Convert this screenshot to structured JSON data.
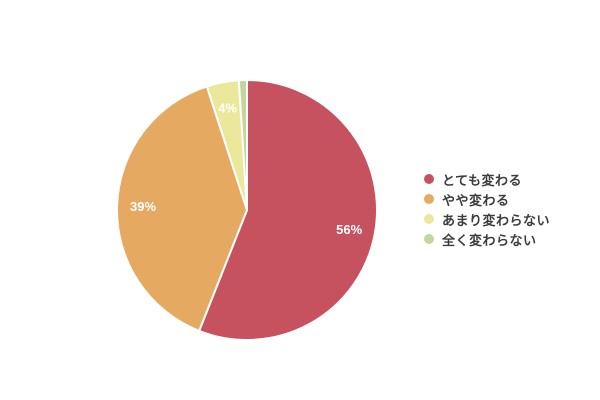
{
  "background_color": "#ffffff",
  "chart_data": {
    "type": "pie",
    "title": "",
    "categories": [
      "とても変わる",
      "やや変わる",
      "あまり変わらない",
      "全く変わらない"
    ],
    "values": [
      56,
      39,
      4,
      1
    ],
    "unit": "%",
    "slice_labels": [
      "56%",
      "39%",
      "4%",
      ""
    ],
    "colors": [
      "#c6525f",
      "#e5a961",
      "#ebe79b",
      "#c3d69b"
    ],
    "slice_border_color": "#ffffff",
    "slice_label_color": "#ffffff",
    "start_angle_deg": 0,
    "direction": "clockwise",
    "legend_position": "right",
    "grid": false
  },
  "legend": {
    "items": [
      {
        "label": "とても変わる",
        "color": "#c6525f"
      },
      {
        "label": "やや変わる",
        "color": "#e5a961"
      },
      {
        "label": "あまり変わらない",
        "color": "#ebe79b"
      },
      {
        "label": "全く変わらない",
        "color": "#c3d69b"
      }
    ]
  }
}
